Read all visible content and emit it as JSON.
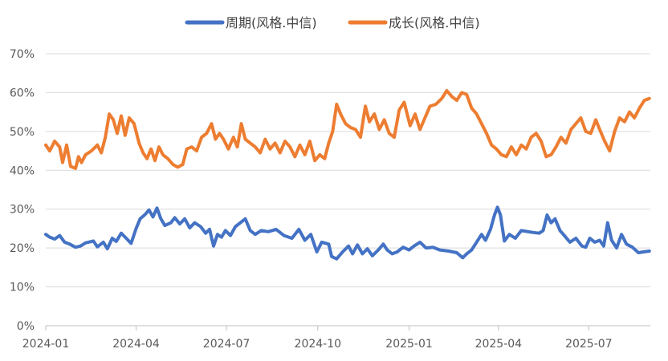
{
  "chart_data": {
    "type": "line",
    "title": "",
    "xlabel": "",
    "ylabel": "",
    "ylim": [
      0,
      70
    ],
    "y_ticks": [
      "0%",
      "10%",
      "20%",
      "30%",
      "40%",
      "50%",
      "60%",
      "70%"
    ],
    "x_ticks": [
      "2024-01",
      "2024-04",
      "2024-07",
      "2024-10",
      "2025-01",
      "2025-04",
      "2025-07"
    ],
    "x_range": [
      "2024-01",
      "2025-09"
    ],
    "legend_position": "top-center",
    "grid": "horizontal",
    "series": [
      {
        "name": "周期(风格.中信)",
        "color": "#4472C4",
        "points": [
          [
            "2024-01-01",
            23.5
          ],
          [
            "2024-01-05",
            22.8
          ],
          [
            "2024-01-10",
            22.3
          ],
          [
            "2024-01-15",
            23.2
          ],
          [
            "2024-01-20",
            21.5
          ],
          [
            "2024-01-25",
            21.0
          ],
          [
            "2024-01-31",
            20.2
          ],
          [
            "2024-02-05",
            20.5
          ],
          [
            "2024-02-10",
            21.3
          ],
          [
            "2024-02-18",
            21.8
          ],
          [
            "2024-02-22",
            20.3
          ],
          [
            "2024-02-28",
            21.5
          ],
          [
            "2024-03-03",
            19.8
          ],
          [
            "2024-03-08",
            22.5
          ],
          [
            "2024-03-12",
            21.7
          ],
          [
            "2024-03-17",
            23.8
          ],
          [
            "2024-03-22",
            22.5
          ],
          [
            "2024-03-27",
            21.2
          ],
          [
            "2024-04-01",
            25.0
          ],
          [
            "2024-04-05",
            27.5
          ],
          [
            "2024-04-10",
            28.6
          ],
          [
            "2024-04-14",
            29.8
          ],
          [
            "2024-04-18",
            28.0
          ],
          [
            "2024-04-22",
            30.3
          ],
          [
            "2024-04-26",
            27.5
          ],
          [
            "2024-04-30",
            25.8
          ],
          [
            "2024-05-06",
            26.5
          ],
          [
            "2024-05-10",
            27.8
          ],
          [
            "2024-05-15",
            26.2
          ],
          [
            "2024-05-20",
            27.5
          ],
          [
            "2024-05-25",
            25.2
          ],
          [
            "2024-05-30",
            26.5
          ],
          [
            "2024-06-05",
            25.5
          ],
          [
            "2024-06-10",
            23.8
          ],
          [
            "2024-06-14",
            24.8
          ],
          [
            "2024-06-18",
            20.5
          ],
          [
            "2024-06-22",
            23.5
          ],
          [
            "2024-06-26",
            22.8
          ],
          [
            "2024-06-30",
            24.5
          ],
          [
            "2024-07-05",
            23.2
          ],
          [
            "2024-07-10",
            25.5
          ],
          [
            "2024-07-15",
            26.5
          ],
          [
            "2024-07-20",
            27.5
          ],
          [
            "2024-07-25",
            24.5
          ],
          [
            "2024-07-30",
            23.5
          ],
          [
            "2024-08-05",
            24.5
          ],
          [
            "2024-08-12",
            24.2
          ],
          [
            "2024-08-20",
            24.8
          ],
          [
            "2024-08-28",
            23.2
          ],
          [
            "2024-09-05",
            22.5
          ],
          [
            "2024-09-12",
            24.8
          ],
          [
            "2024-09-18",
            22.0
          ],
          [
            "2024-09-24",
            23.5
          ],
          [
            "2024-09-30",
            19.0
          ],
          [
            "2024-10-05",
            21.5
          ],
          [
            "2024-10-12",
            21.0
          ],
          [
            "2024-10-15",
            17.8
          ],
          [
            "2024-10-20",
            17.2
          ],
          [
            "2024-10-26",
            19.0
          ],
          [
            "2024-11-01",
            20.5
          ],
          [
            "2024-11-05",
            18.5
          ],
          [
            "2024-11-10",
            20.8
          ],
          [
            "2024-11-15",
            18.5
          ],
          [
            "2024-11-20",
            19.8
          ],
          [
            "2024-11-25",
            18.0
          ],
          [
            "2024-12-01",
            19.5
          ],
          [
            "2024-12-06",
            21.0
          ],
          [
            "2024-12-10",
            19.5
          ],
          [
            "2024-12-15",
            18.5
          ],
          [
            "2024-12-20",
            19.0
          ],
          [
            "2024-12-26",
            20.2
          ],
          [
            "2025-01-01",
            19.5
          ],
          [
            "2025-01-06",
            20.5
          ],
          [
            "2025-01-12",
            21.5
          ],
          [
            "2025-01-18",
            20.0
          ],
          [
            "2025-01-25",
            20.2
          ],
          [
            "2025-02-01",
            19.5
          ],
          [
            "2025-02-10",
            19.2
          ],
          [
            "2025-02-18",
            18.8
          ],
          [
            "2025-02-24",
            17.5
          ],
          [
            "2025-02-28",
            18.5
          ],
          [
            "2025-03-05",
            19.5
          ],
          [
            "2025-03-10",
            21.5
          ],
          [
            "2025-03-15",
            23.5
          ],
          [
            "2025-03-19",
            22.0
          ],
          [
            "2025-03-24",
            24.8
          ],
          [
            "2025-03-28",
            28.5
          ],
          [
            "2025-03-31",
            30.5
          ],
          [
            "2025-04-03",
            28.5
          ],
          [
            "2025-04-07",
            21.8
          ],
          [
            "2025-04-12",
            23.5
          ],
          [
            "2025-04-18",
            22.5
          ],
          [
            "2025-04-24",
            24.5
          ],
          [
            "2025-05-01",
            24.2
          ],
          [
            "2025-05-06",
            24.0
          ],
          [
            "2025-05-12",
            23.8
          ],
          [
            "2025-05-16",
            24.5
          ],
          [
            "2025-05-20",
            28.5
          ],
          [
            "2025-05-24",
            26.5
          ],
          [
            "2025-05-28",
            27.5
          ],
          [
            "2025-06-02",
            24.5
          ],
          [
            "2025-06-07",
            23.0
          ],
          [
            "2025-06-12",
            21.5
          ],
          [
            "2025-06-18",
            22.5
          ],
          [
            "2025-06-24",
            20.5
          ],
          [
            "2025-06-28",
            20.2
          ],
          [
            "2025-07-02",
            22.5
          ],
          [
            "2025-07-07",
            21.5
          ],
          [
            "2025-07-12",
            22.0
          ],
          [
            "2025-07-16",
            20.5
          ],
          [
            "2025-07-20",
            26.5
          ],
          [
            "2025-07-24",
            22.0
          ],
          [
            "2025-07-29",
            20.0
          ],
          [
            "2025-08-03",
            23.5
          ],
          [
            "2025-08-08",
            21.0
          ],
          [
            "2025-08-14",
            20.2
          ],
          [
            "2025-08-20",
            18.8
          ],
          [
            "2025-08-25",
            19.0
          ],
          [
            "2025-08-31",
            19.2
          ]
        ]
      },
      {
        "name": "成长(风格.中信)",
        "color": "#ED7D31",
        "points": [
          [
            "2024-01-01",
            46.5
          ],
          [
            "2024-01-05",
            45.0
          ],
          [
            "2024-01-10",
            47.5
          ],
          [
            "2024-01-15",
            46.0
          ],
          [
            "2024-01-18",
            42.0
          ],
          [
            "2024-01-22",
            46.5
          ],
          [
            "2024-01-26",
            41.0
          ],
          [
            "2024-01-31",
            40.5
          ],
          [
            "2024-02-03",
            43.5
          ],
          [
            "2024-02-06",
            42.0
          ],
          [
            "2024-02-10",
            44.0
          ],
          [
            "2024-02-16",
            45.0
          ],
          [
            "2024-02-22",
            46.5
          ],
          [
            "2024-02-26",
            44.5
          ],
          [
            "2024-03-01",
            48.5
          ],
          [
            "2024-03-05",
            54.5
          ],
          [
            "2024-03-09",
            53.0
          ],
          [
            "2024-03-13",
            49.5
          ],
          [
            "2024-03-17",
            54.0
          ],
          [
            "2024-03-21",
            49.0
          ],
          [
            "2024-03-25",
            53.5
          ],
          [
            "2024-03-30",
            52.0
          ],
          [
            "2024-04-04",
            47.0
          ],
          [
            "2024-04-08",
            44.5
          ],
          [
            "2024-04-12",
            43.0
          ],
          [
            "2024-04-16",
            45.5
          ],
          [
            "2024-04-20",
            42.5
          ],
          [
            "2024-04-24",
            46.0
          ],
          [
            "2024-04-28",
            44.0
          ],
          [
            "2024-05-03",
            43.0
          ],
          [
            "2024-05-08",
            41.5
          ],
          [
            "2024-05-13",
            40.8
          ],
          [
            "2024-05-18",
            41.5
          ],
          [
            "2024-05-22",
            45.5
          ],
          [
            "2024-05-27",
            46.0
          ],
          [
            "2024-06-01",
            45.0
          ],
          [
            "2024-06-06",
            48.5
          ],
          [
            "2024-06-11",
            49.5
          ],
          [
            "2024-06-16",
            52.0
          ],
          [
            "2024-06-20",
            48.0
          ],
          [
            "2024-06-24",
            49.5
          ],
          [
            "2024-06-28",
            48.0
          ],
          [
            "2024-07-03",
            45.5
          ],
          [
            "2024-07-08",
            48.5
          ],
          [
            "2024-07-12",
            46.0
          ],
          [
            "2024-07-16",
            52.0
          ],
          [
            "2024-07-20",
            48.0
          ],
          [
            "2024-07-25",
            47.0
          ],
          [
            "2024-07-30",
            46.0
          ],
          [
            "2024-08-04",
            44.5
          ],
          [
            "2024-08-09",
            48.0
          ],
          [
            "2024-08-14",
            45.5
          ],
          [
            "2024-08-19",
            47.0
          ],
          [
            "2024-08-24",
            44.5
          ],
          [
            "2024-08-29",
            47.5
          ],
          [
            "2024-09-03",
            46.0
          ],
          [
            "2024-09-08",
            43.5
          ],
          [
            "2024-09-13",
            46.5
          ],
          [
            "2024-09-18",
            44.0
          ],
          [
            "2024-09-23",
            47.5
          ],
          [
            "2024-09-28",
            42.5
          ],
          [
            "2024-10-03",
            44.0
          ],
          [
            "2024-10-08",
            43.0
          ],
          [
            "2024-10-12",
            47.0
          ],
          [
            "2024-10-16",
            50.0
          ],
          [
            "2024-10-20",
            57.0
          ],
          [
            "2024-10-24",
            54.5
          ],
          [
            "2024-10-29",
            52.0
          ],
          [
            "2024-11-03",
            51.0
          ],
          [
            "2024-11-08",
            50.5
          ],
          [
            "2024-11-13",
            48.5
          ],
          [
            "2024-11-18",
            56.5
          ],
          [
            "2024-11-22",
            52.5
          ],
          [
            "2024-11-27",
            54.5
          ],
          [
            "2024-12-02",
            50.5
          ],
          [
            "2024-12-07",
            53.0
          ],
          [
            "2024-12-12",
            49.5
          ],
          [
            "2024-12-17",
            48.5
          ],
          [
            "2024-12-22",
            55.5
          ],
          [
            "2024-12-27",
            57.5
          ],
          [
            "2025-01-02",
            51.5
          ],
          [
            "2025-01-07",
            54.5
          ],
          [
            "2025-01-12",
            50.5
          ],
          [
            "2025-01-17",
            53.5
          ],
          [
            "2025-01-22",
            56.5
          ],
          [
            "2025-01-28",
            57.0
          ],
          [
            "2025-02-03",
            58.5
          ],
          [
            "2025-02-08",
            60.5
          ],
          [
            "2025-02-13",
            59.0
          ],
          [
            "2025-02-18",
            58.0
          ],
          [
            "2025-02-23",
            60.0
          ],
          [
            "2025-02-28",
            59.5
          ],
          [
            "2025-03-05",
            56.0
          ],
          [
            "2025-03-10",
            54.5
          ],
          [
            "2025-03-15",
            52.0
          ],
          [
            "2025-03-20",
            49.5
          ],
          [
            "2025-03-25",
            46.5
          ],
          [
            "2025-03-30",
            45.5
          ],
          [
            "2025-04-04",
            44.0
          ],
          [
            "2025-04-09",
            43.5
          ],
          [
            "2025-04-14",
            46.0
          ],
          [
            "2025-04-19",
            44.0
          ],
          [
            "2025-04-24",
            46.5
          ],
          [
            "2025-04-29",
            45.5
          ],
          [
            "2025-05-04",
            48.5
          ],
          [
            "2025-05-09",
            49.5
          ],
          [
            "2025-05-14",
            47.5
          ],
          [
            "2025-05-19",
            43.5
          ],
          [
            "2025-05-24",
            44.0
          ],
          [
            "2025-05-29",
            46.0
          ],
          [
            "2025-06-03",
            48.5
          ],
          [
            "2025-06-08",
            47.0
          ],
          [
            "2025-06-13",
            50.5
          ],
          [
            "2025-06-18",
            52.0
          ],
          [
            "2025-06-23",
            53.5
          ],
          [
            "2025-06-28",
            50.0
          ],
          [
            "2025-07-03",
            49.5
          ],
          [
            "2025-07-08",
            53.0
          ],
          [
            "2025-07-12",
            50.5
          ],
          [
            "2025-07-17",
            47.5
          ],
          [
            "2025-07-22",
            45.0
          ],
          [
            "2025-07-27",
            50.0
          ],
          [
            "2025-08-01",
            53.5
          ],
          [
            "2025-08-06",
            52.5
          ],
          [
            "2025-08-11",
            55.0
          ],
          [
            "2025-08-16",
            53.5
          ],
          [
            "2025-08-21",
            56.0
          ],
          [
            "2025-08-26",
            58.0
          ],
          [
            "2025-08-31",
            58.5
          ]
        ]
      }
    ]
  }
}
